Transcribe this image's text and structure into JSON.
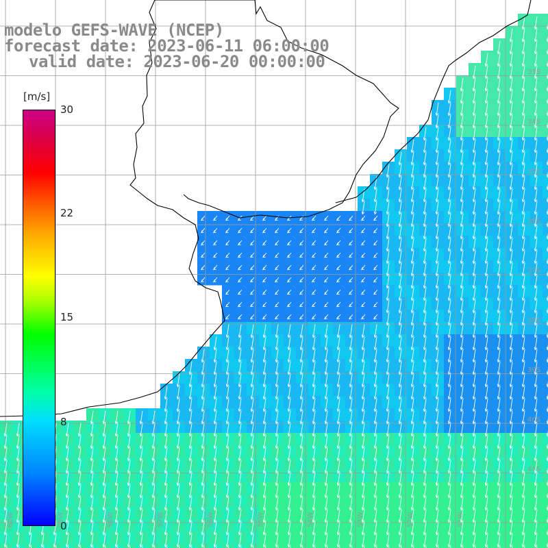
{
  "title": {
    "model": "modelo GEFS-WAVE (NCEP)",
    "forecast": "forecast date: 2023-06-11 06:00:00",
    "valid": "valid date: 2023-06-20 00:00:00"
  },
  "colorbar": {
    "unit": "[m/s]",
    "min": 0,
    "max": 30,
    "ticks": [
      "30",
      "22",
      "15",
      "8",
      "0"
    ],
    "colors": [
      "#0000ff",
      "#0088ff",
      "#00ddff",
      "#00ffaa",
      "#00ff00",
      "#ffff00",
      "#ff0000",
      "#cc0088"
    ]
  },
  "map": {
    "lat_labels": [
      "33S",
      "34S",
      "35S",
      "36S",
      "37S",
      "38S",
      "39S",
      "40S",
      "41S"
    ],
    "lon_labels": [
      "60W",
      "59W",
      "58W",
      "57W",
      "56W",
      "55W",
      "54W",
      "53W",
      "52W",
      "51W"
    ],
    "land_color": "#ffffff",
    "arrow_color": "#ffffff",
    "grid_color": "#9a9a9a"
  }
}
